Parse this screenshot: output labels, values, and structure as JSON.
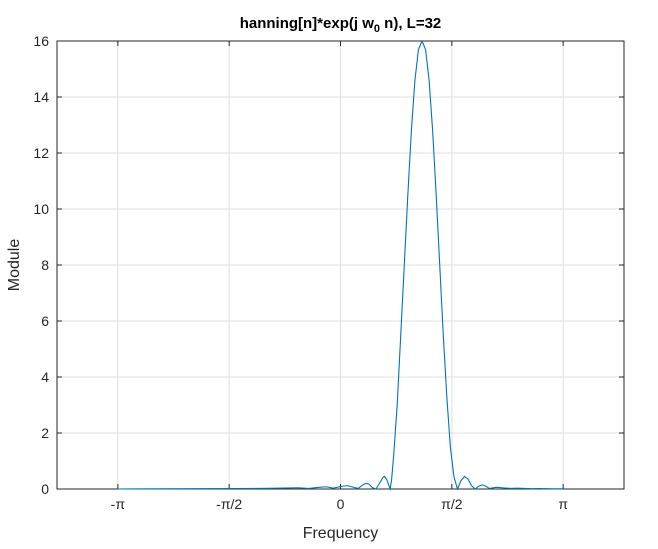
{
  "chart_data": {
    "type": "line",
    "title": "hanning[n]*exp(j  w",
    "title_subscript": "0",
    "title_suffix": "  n),  L=32",
    "xlabel": "Frequency",
    "ylabel": "Module",
    "xlim": [
      -4.0,
      4.0
    ],
    "ylim": [
      0,
      16
    ],
    "grid": true,
    "xticks": [
      {
        "value": -3.14159,
        "label": "-π"
      },
      {
        "value": -1.5708,
        "label": "-π/2"
      },
      {
        "value": 0,
        "label": "0"
      },
      {
        "value": 1.5708,
        "label": "π/2"
      },
      {
        "value": 3.14159,
        "label": "π"
      }
    ],
    "yticks": [
      {
        "value": 0,
        "label": "0"
      },
      {
        "value": 2,
        "label": "2"
      },
      {
        "value": 4,
        "label": "4"
      },
      {
        "value": 6,
        "label": "6"
      },
      {
        "value": 8,
        "label": "8"
      },
      {
        "value": 10,
        "label": "10"
      },
      {
        "value": 12,
        "label": "12"
      },
      {
        "value": 14,
        "label": "14"
      },
      {
        "value": 16,
        "label": "16"
      }
    ],
    "series": [
      {
        "color": "#0072BD",
        "x": [
          -3.14159,
          -2.5,
          -2.0,
          -1.5,
          -1.2,
          -1.0,
          -0.8,
          -0.6,
          -0.45,
          -0.3,
          -0.2,
          -0.1,
          0.0,
          0.1,
          0.2,
          0.25,
          0.3,
          0.35,
          0.4,
          0.45,
          0.5,
          0.55,
          0.6,
          0.62,
          0.65,
          0.7,
          0.72,
          0.75,
          0.8,
          0.85,
          0.9,
          0.95,
          1.0,
          1.05,
          1.1,
          1.15,
          1.2,
          1.25,
          1.3,
          1.35,
          1.4,
          1.45,
          1.5,
          1.55,
          1.6,
          1.65,
          1.7,
          1.75,
          1.8,
          1.85,
          1.9,
          1.95,
          2.0,
          2.05,
          2.1,
          2.2,
          2.3,
          2.4,
          2.5,
          2.6,
          2.7,
          2.8,
          3.0,
          3.14159
        ],
        "values": [
          0.0,
          0.005,
          0.01,
          0.015,
          0.02,
          0.025,
          0.035,
          0.045,
          0.02,
          0.06,
          0.08,
          0.03,
          0.09,
          0.12,
          0.05,
          0.02,
          0.12,
          0.2,
          0.18,
          0.05,
          0.0,
          0.2,
          0.42,
          0.45,
          0.35,
          0.0,
          0.3,
          1.2,
          3.0,
          5.5,
          8.0,
          10.5,
          12.8,
          14.6,
          15.7,
          16.0,
          15.7,
          14.6,
          12.8,
          10.5,
          8.0,
          5.5,
          3.3,
          1.5,
          0.45,
          0.0,
          0.3,
          0.45,
          0.35,
          0.12,
          0.0,
          0.1,
          0.15,
          0.1,
          0.02,
          0.06,
          0.04,
          0.02,
          0.03,
          0.02,
          0.01,
          0.015,
          0.008,
          0.005
        ]
      }
    ]
  }
}
